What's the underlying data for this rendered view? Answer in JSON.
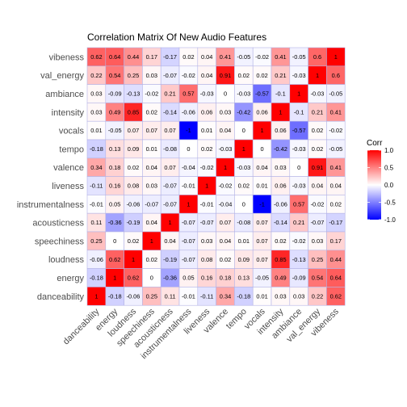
{
  "chart_data": {
    "type": "heatmap",
    "title": "Correlation Matrix Of New Audio Features",
    "xlabel": "",
    "ylabel": "",
    "variables": [
      "danceability",
      "energy",
      "loudness",
      "speechiness",
      "acousticness",
      "instrumentalness",
      "liveness",
      "valence",
      "tempo",
      "vocals",
      "intensity",
      "ambiance",
      "val_energy",
      "vibeness"
    ],
    "matrix_rows_top_to_bottom": [
      "vibeness",
      "val_energy",
      "ambiance",
      "intensity",
      "vocals",
      "tempo",
      "valence",
      "liveness",
      "instrumentalness",
      "acousticness",
      "speechiness",
      "loudness",
      "energy",
      "danceability"
    ],
    "cell_labels": [
      [
        "0.62",
        "0.64",
        "0.44",
        "0.17",
        "-0.17",
        "0.02",
        "0.04",
        "0.41",
        "-0.05",
        "-0.02",
        "0.41",
        "-0.05",
        "0.6",
        "1"
      ],
      [
        "0.22",
        "0.54",
        "0.25",
        "0.03",
        "-0.07",
        "-0.02",
        "0.04",
        "0.91",
        "0.02",
        "0.02",
        "0.21",
        "-0.03",
        "1",
        "0.6"
      ],
      [
        "0.03",
        "-0.09",
        "-0.13",
        "-0.02",
        "0.21",
        "0.57",
        "-0.03",
        "0",
        "-0.03",
        "-0.57",
        "-0.1",
        "1",
        "-0.03",
        "-0.05"
      ],
      [
        "0.03",
        "0.49",
        "0.85",
        "0.02",
        "-0.14",
        "-0.06",
        "0.06",
        "0.03",
        "-0.42",
        "0.06",
        "1",
        "-0.1",
        "0.21",
        "0.41"
      ],
      [
        "0.01",
        "-0.05",
        "0.07",
        "0.07",
        "0.07",
        "-1",
        "0.01",
        "0.04",
        "0",
        "1",
        "0.06",
        "-0.57",
        "0.02",
        "-0.02"
      ],
      [
        "-0.18",
        "0.13",
        "0.09",
        "0.01",
        "-0.08",
        "0",
        "0.02",
        "-0.03",
        "1",
        "0",
        "-0.42",
        "-0.03",
        "0.02",
        "-0.05"
      ],
      [
        "0.34",
        "0.18",
        "0.02",
        "0.04",
        "0.07",
        "-0.04",
        "-0.02",
        "1",
        "-0.03",
        "0.04",
        "0.03",
        "0",
        "0.91",
        "0.41"
      ],
      [
        "-0.11",
        "0.16",
        "0.08",
        "0.03",
        "-0.07",
        "-0.01",
        "1",
        "-0.02",
        "0.02",
        "0.01",
        "0.06",
        "-0.03",
        "0.04",
        "0.04"
      ],
      [
        "-0.01",
        "0.05",
        "-0.06",
        "-0.07",
        "-0.07",
        "1",
        "-0.01",
        "-0.04",
        "0",
        "-1",
        "-0.06",
        "0.57",
        "-0.02",
        "0.02"
      ],
      [
        "0.11",
        "-0.36",
        "-0.19",
        "0.04",
        "1",
        "-0.07",
        "-0.07",
        "0.07",
        "-0.08",
        "0.07",
        "-0.14",
        "0.21",
        "-0.07",
        "-0.17"
      ],
      [
        "0.25",
        "0",
        "0.02",
        "1",
        "0.04",
        "-0.07",
        "0.03",
        "0.04",
        "0.01",
        "0.07",
        "0.02",
        "-0.02",
        "0.03",
        "0.17"
      ],
      [
        "-0.06",
        "0.62",
        "1",
        "0.02",
        "-0.19",
        "-0.07",
        "0.08",
        "0.02",
        "0.09",
        "0.07",
        "0.85",
        "-0.13",
        "0.25",
        "0.44"
      ],
      [
        "-0.18",
        "1",
        "0.62",
        "0",
        "-0.36",
        "0.05",
        "0.16",
        "0.18",
        "0.13",
        "-0.05",
        "0.49",
        "-0.09",
        "0.54",
        "0.64"
      ],
      [
        "1",
        "-0.18",
        "-0.06",
        "0.25",
        "0.11",
        "-0.01",
        "-0.11",
        "0.34",
        "-0.18",
        "0.01",
        "0.03",
        "0.03",
        "0.22",
        "0.62"
      ]
    ],
    "legend": {
      "title": "Corr",
      "ticks": [
        "1.0",
        "0.5",
        "0.0",
        "-0.5",
        "-1.0"
      ],
      "tick_values": [
        1.0,
        0.5,
        0.0,
        -0.5,
        -1.0
      ],
      "range": [
        -1,
        1
      ],
      "placement": "right"
    },
    "color_scale": {
      "low": "#0000ff",
      "mid": "#ffffff",
      "high": "#ff0000"
    },
    "cell_border_color": "#b3b3e6",
    "panel_background": "#ffffff"
  }
}
